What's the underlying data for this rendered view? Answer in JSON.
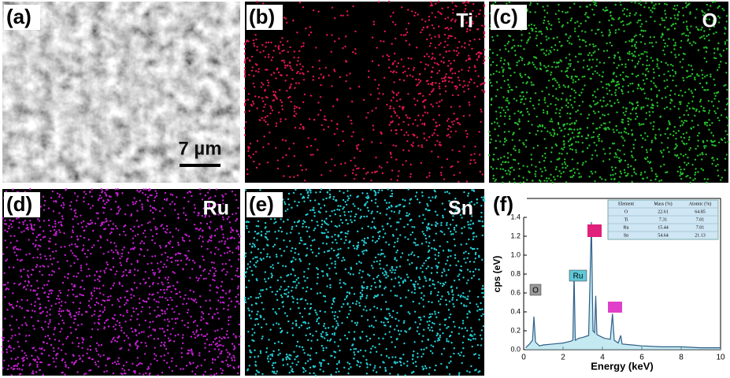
{
  "panels": [
    {
      "label": "(a)",
      "scale_bar": "7 µm"
    },
    {
      "label": "(b)",
      "element": "Ti",
      "color": "#e3164e"
    },
    {
      "label": "(c)",
      "element": "O",
      "color": "#25c02a"
    },
    {
      "label": "(d)",
      "element": "Ru",
      "color": "#c51fd2"
    },
    {
      "label": "(e)",
      "element": "Sn",
      "color": "#22cfd6"
    },
    {
      "label": "(f)"
    }
  ],
  "chart_data": {
    "type": "line",
    "x_label": "Energy (keV)",
    "y_label": "cps (eV)",
    "x": [
      0.1,
      0.3,
      0.45,
      0.52,
      0.6,
      0.8,
      1.0,
      1.5,
      2.0,
      2.4,
      2.5,
      2.56,
      2.62,
      2.8,
      3.0,
      3.3,
      3.44,
      3.52,
      3.6,
      3.66,
      3.72,
      3.9,
      4.1,
      4.4,
      4.51,
      4.6,
      4.8,
      4.93,
      5.0,
      5.5,
      6.0,
      7.0,
      8.0,
      9.0,
      10.0
    ],
    "values": [
      0.02,
      0.06,
      0.1,
      0.35,
      0.08,
      0.04,
      0.05,
      0.06,
      0.07,
      0.09,
      0.1,
      0.82,
      0.1,
      0.12,
      0.13,
      0.15,
      1.35,
      0.2,
      0.18,
      0.57,
      0.16,
      0.14,
      0.12,
      0.11,
      0.38,
      0.1,
      0.07,
      0.15,
      0.06,
      0.05,
      0.04,
      0.03,
      0.03,
      0.02,
      0.02
    ],
    "color": "#2f5f8a",
    "peak_labels": [
      "O",
      "Ru"
    ],
    "xlim": [
      0,
      10
    ],
    "xticks": [
      0,
      2,
      4,
      6,
      8,
      10
    ],
    "ylim": [
      0,
      1.6
    ],
    "yticks": [
      {
        "value": 0,
        "label": "0.0"
      },
      {
        "value": 0.2,
        "label": "0.2"
      },
      {
        "value": 0.4,
        "label": "0.4"
      },
      {
        "value": 0.6,
        "label": "0.6"
      },
      {
        "value": 0.8,
        "label": "0.8"
      },
      {
        "value": 1.0,
        "label": "1.0"
      },
      {
        "value": 1.2,
        "label": "1.2"
      },
      {
        "value": 1.4,
        "label": "1.4"
      }
    ],
    "table": {
      "header": [
        "Element",
        "Mass (%)",
        "Atomic (%)"
      ],
      "rows": [
        [
          "O",
          "22.61",
          "64.85"
        ],
        [
          "Ti",
          "7.31",
          "7.01"
        ],
        [
          "Ru",
          "15.44",
          "7.01"
        ],
        [
          "Sn",
          "54.64",
          "21.13"
        ]
      ]
    }
  }
}
